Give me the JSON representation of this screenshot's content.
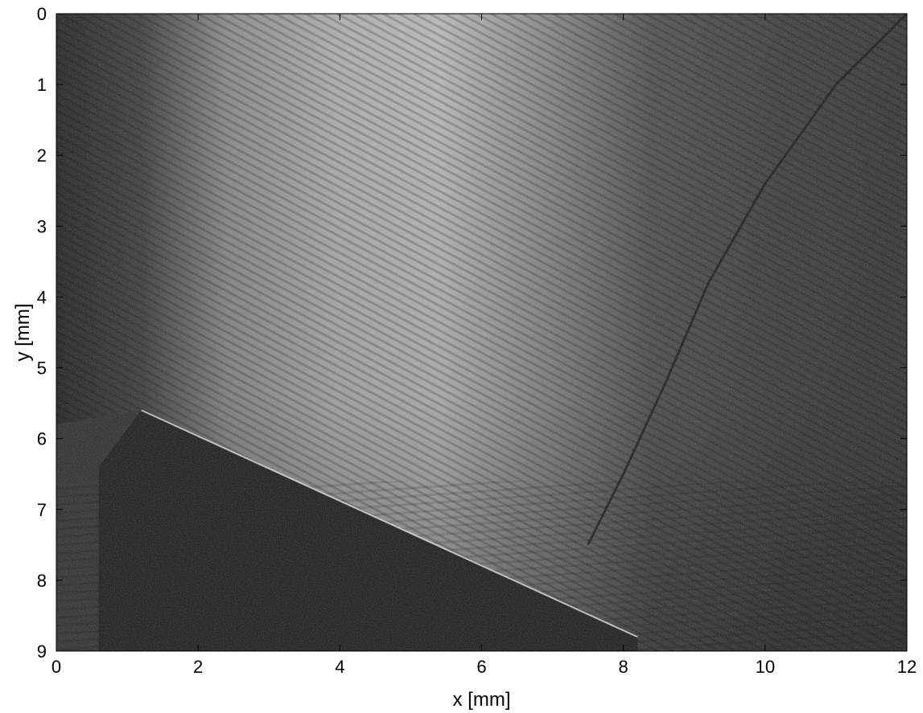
{
  "figure": {
    "xlabel": "x [mm]",
    "ylabel": "y [mm]",
    "xlim": [
      0,
      12
    ],
    "ylim": [
      0,
      9
    ],
    "y_direction": "down",
    "x_ticks": [
      0,
      2,
      4,
      6,
      8,
      10,
      12
    ],
    "y_ticks": [
      0,
      1,
      2,
      3,
      4,
      5,
      6,
      7,
      8,
      9
    ],
    "image": {
      "type": "grayscale interferogram",
      "bright_band_x_range": [
        1.5,
        7.0
      ],
      "wedge_polygon_mm": [
        [
          1.2,
          5.6
        ],
        [
          8.2,
          8.8
        ],
        [
          8.2,
          9.0
        ],
        [
          0.6,
          9.0
        ],
        [
          0.6,
          6.4
        ]
      ],
      "shock_curve_mm": [
        [
          12.0,
          0.0
        ],
        [
          11.0,
          1.0
        ],
        [
          10.0,
          2.4
        ],
        [
          9.2,
          3.8
        ],
        [
          8.6,
          5.2
        ],
        [
          8.0,
          6.5
        ],
        [
          7.5,
          7.5
        ]
      ],
      "wedge_edge_mm": [
        [
          1.2,
          5.6
        ],
        [
          8.2,
          8.8
        ]
      ]
    }
  }
}
